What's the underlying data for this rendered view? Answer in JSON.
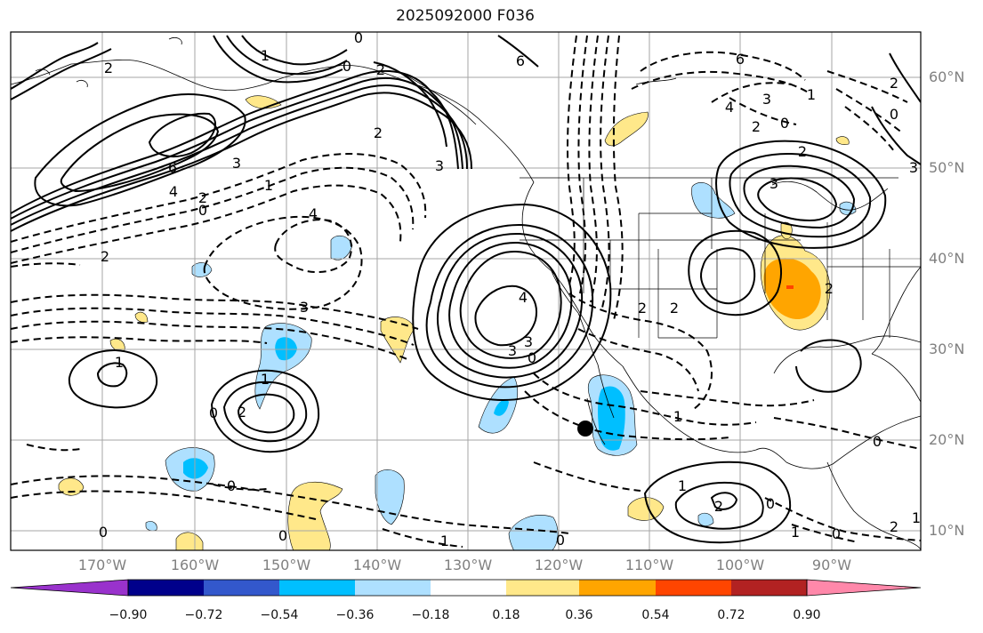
{
  "title": "2025092000 F036",
  "lat_labels": [
    "60°N",
    "50°N",
    "40°N",
    "30°N",
    "20°N",
    "10°N"
  ],
  "lon_labels": [
    "170°W",
    "160°W",
    "150°W",
    "140°W",
    "130°W",
    "120°W",
    "110°W",
    "100°W",
    "90°W"
  ],
  "colorbar": {
    "ticks": [
      "−0.90",
      "−0.72",
      "−0.54",
      "−0.36",
      "−0.18",
      "0.18",
      "0.36",
      "0.54",
      "0.72",
      "0.90"
    ],
    "colors": [
      "#9932cc",
      "#00008b",
      "#3358cc",
      "#00bfff",
      "#aee0ff",
      "#ffffff",
      "#ffe88a",
      "#ffa500",
      "#ff4500",
      "#b22222",
      "#ff88aa"
    ]
  },
  "contour_labels": [
    "0",
    "2",
    "1",
    "6",
    "4",
    "3",
    "0",
    "1",
    "2",
    "3",
    "4",
    "6",
    "3",
    "2",
    "0",
    "2",
    "2",
    "1",
    "2",
    "0",
    "3",
    "4",
    "3",
    "1",
    "2",
    "2",
    "1",
    "0",
    "1",
    "0",
    "2",
    "0",
    "6",
    "4",
    "2",
    "0",
    "3",
    "3",
    "2",
    "2",
    "3",
    "0",
    "1",
    "1",
    "2",
    "0",
    "0",
    "1",
    "0",
    "1",
    "0",
    "0",
    "2"
  ]
}
